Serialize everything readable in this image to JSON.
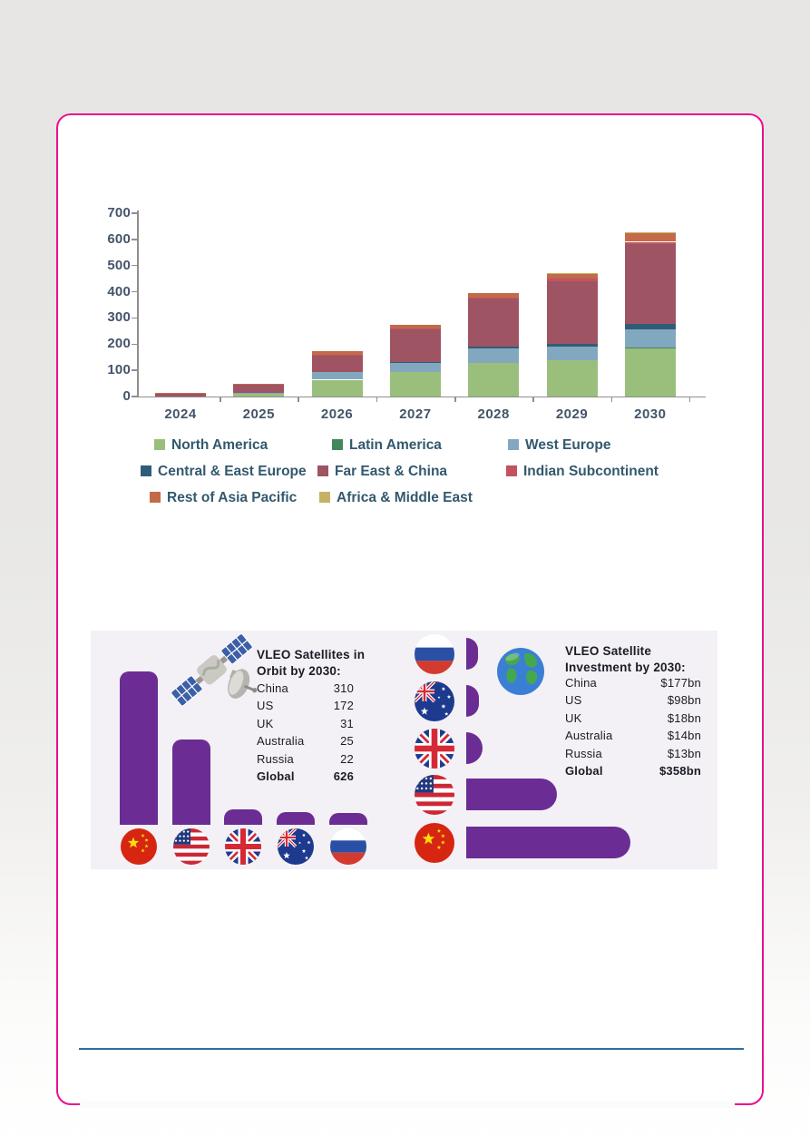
{
  "colors": {
    "card_border": "#ec0f8e",
    "card_bg": "#ffffff",
    "chart_text": "#44546a",
    "legend_text": "#33596e",
    "axis": "#8f8f8f",
    "divider": "#2e6da4",
    "infographic_bg": "#f3f1f5",
    "infographic_bar": "#6b2d94",
    "infographic_text": "#1b1b26"
  },
  "chart_data": [
    {
      "type": "bar",
      "stacked": true,
      "title": "",
      "categories": [
        "2024",
        "2025",
        "2026",
        "2027",
        "2028",
        "2029",
        "2030"
      ],
      "series": [
        {
          "name": "North America",
          "color": "#9abf7c",
          "values": [
            0,
            12,
            64,
            93,
            128,
            139,
            185
          ]
        },
        {
          "name": "Latin America",
          "color": "#42885c",
          "values": [
            0,
            0,
            0,
            0,
            0,
            0,
            2
          ]
        },
        {
          "name": "West Europe",
          "color": "#82a8c0",
          "values": [
            0,
            2,
            31,
            37,
            55,
            52,
            70
          ]
        },
        {
          "name": "Central & East Europe",
          "color": "#2f5d78",
          "values": [
            0,
            0,
            0,
            2,
            7,
            10,
            20
          ]
        },
        {
          "name": "Far East & China",
          "color": "#9e5463",
          "values": [
            13,
            30,
            64,
            124,
            184,
            240,
            306
          ]
        },
        {
          "name": "Indian Subcontinent",
          "color": "#c25460",
          "values": [
            0,
            0,
            2,
            5,
            4,
            8,
            8
          ]
        },
        {
          "name": "Rest of Asia Pacific",
          "color": "#c26a4a",
          "values": [
            2,
            3,
            12,
            14,
            17,
            18,
            32
          ]
        },
        {
          "name": "Africa & Middle East",
          "color": "#c5b264",
          "values": [
            0,
            0,
            0,
            0,
            0,
            3,
            3
          ]
        }
      ],
      "ylim": [
        0,
        700
      ],
      "yticks": [
        0,
        100,
        200,
        300,
        400,
        500,
        600,
        700
      ],
      "grid": false,
      "legend_position": "bottom",
      "legend_rows": [
        [
          "North America",
          "Latin America",
          "West Europe"
        ],
        [
          "Central & East Europe",
          "Far East & China",
          "Indian Subcontinent"
        ],
        [
          "Rest of Asia Pacific",
          "Africa & Middle East"
        ]
      ]
    },
    {
      "type": "bar",
      "orientation": "vertical",
      "title": "VLEO Satellites in Orbit by 2030",
      "categories": [
        "China",
        "US",
        "UK",
        "Australia",
        "Russia"
      ],
      "values": [
        310,
        172,
        31,
        25,
        22
      ],
      "total_label": "Global",
      "total_value": 626
    },
    {
      "type": "bar",
      "orientation": "horizontal",
      "title": "VLEO Satellite Investment by 2030",
      "categories": [
        "China",
        "US",
        "UK",
        "Australia",
        "Russia"
      ],
      "values": [
        177,
        98,
        18,
        14,
        13
      ],
      "unit": "$bn",
      "total_label": "Global",
      "total_value": 358
    }
  ],
  "infographic": {
    "left": {
      "title_line1": "VLEO Satellites in",
      "title_line2": "Orbit by 2030:",
      "rows": [
        {
          "label": "China",
          "value": "310",
          "bold": false
        },
        {
          "label": "US",
          "value": "172",
          "bold": false
        },
        {
          "label": "UK",
          "value": "31",
          "bold": false
        },
        {
          "label": "Australia",
          "value": "25",
          "bold": false
        },
        {
          "label": "Russia",
          "value": "22",
          "bold": false
        },
        {
          "label": "Global",
          "value": "626",
          "bold": true
        }
      ],
      "bar_order": [
        "china",
        "us",
        "uk",
        "australia",
        "russia"
      ],
      "bar_values": [
        310,
        172,
        31,
        25,
        22
      ]
    },
    "right": {
      "title_line1": "VLEO Satellite",
      "title_line2": "Investment by 2030:",
      "rows": [
        {
          "label": "China",
          "value": "$177bn",
          "bold": false
        },
        {
          "label": "US",
          "value": "$98bn",
          "bold": false
        },
        {
          "label": "UK",
          "value": "$18bn",
          "bold": false
        },
        {
          "label": "Australia",
          "value": "$14bn",
          "bold": false
        },
        {
          "label": "Russia",
          "value": "$13bn",
          "bold": false
        },
        {
          "label": "Global",
          "value": "$358bn",
          "bold": true
        }
      ],
      "bar_order": [
        "russia",
        "australia",
        "uk",
        "us",
        "china"
      ],
      "bar_values": [
        13,
        14,
        18,
        98,
        177
      ]
    }
  }
}
